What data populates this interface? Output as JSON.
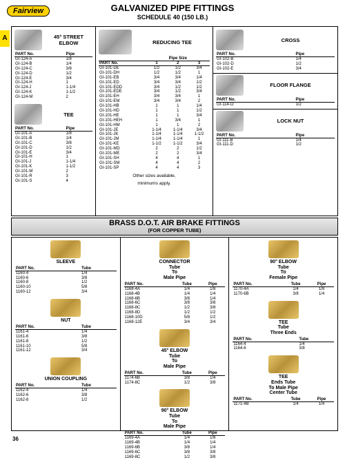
{
  "logo": "Fairview",
  "tab": "A",
  "page_number": "36",
  "header": {
    "title": "GALVANIZED PIPE FITTINGS",
    "subtitle": "SCHEDULE 40 (150 LB.)"
  },
  "banner": {
    "line1": "BRASS D.O.T. AIR BRAKE FITTINGS",
    "line2": "(FOR COPPER TUBE)"
  },
  "street_elbow": {
    "title": "45° STREET ELBOW",
    "cols": [
      "PART No.",
      "Pipe"
    ],
    "rows": [
      [
        "GI-124-A",
        "1/8"
      ],
      [
        "GI-124-B",
        "1/4"
      ],
      [
        "GI-124-C",
        "3/8"
      ],
      [
        "GI-124-D",
        "1/2"
      ],
      [
        "GI-124-E",
        "3/4"
      ],
      [
        "GI-124-H",
        "1"
      ],
      [
        "GI-124-J",
        "1-1/4"
      ],
      [
        "GI-124-K",
        "1-1/2"
      ],
      [
        "GI-124-M",
        "2"
      ]
    ]
  },
  "tee": {
    "title": "TEE",
    "cols": [
      "PART No.",
      "Pipe"
    ],
    "rows": [
      [
        "GI-101-A",
        "1/8"
      ],
      [
        "GI-101-B",
        "1/4"
      ],
      [
        "GI-101-C",
        "3/8"
      ],
      [
        "GI-101-D",
        "1/2"
      ],
      [
        "GI-101-E",
        "3/4"
      ],
      [
        "GI-101-H",
        "1"
      ],
      [
        "GI-101-J",
        "1-1/4"
      ],
      [
        "GI-101-K",
        "1-1/2"
      ],
      [
        "GI-101-M",
        "2"
      ],
      [
        "GI-101-R",
        "3"
      ],
      [
        "GI-101-S",
        "4"
      ]
    ]
  },
  "reducing_tee": {
    "title": "REDUCING TEE",
    "supercol": "Pipe Size",
    "cols": [
      "PART No.",
      "1",
      "2",
      "3"
    ],
    "rows": [
      [
        "GI-101-DE",
        "1/2",
        "1/2",
        "3/4"
      ],
      [
        "GI-101-DH",
        "1/2",
        "1/2",
        "1"
      ],
      [
        "GI-101-EB",
        "3/4",
        "3/4",
        "1/4"
      ],
      [
        "GI-101-ED",
        "3/4",
        "3/4",
        "1/2"
      ],
      [
        "GI-101-EDD",
        "3/4",
        "1/2",
        "1/2"
      ],
      [
        "GI-101-EDE",
        "3/4",
        "1/2",
        "3/4"
      ],
      [
        "GI-101-EH",
        "3/4",
        "3/4",
        "1"
      ],
      [
        "GI-101-EM",
        "3/4",
        "3/4",
        "2"
      ],
      [
        "GI-101-HB",
        "1",
        "1",
        "1/4"
      ],
      [
        "GI-101-HD",
        "1",
        "1",
        "1/2"
      ],
      [
        "GI-101-HE",
        "1",
        "1",
        "3/4"
      ],
      [
        "GI-101-HEH",
        "1",
        "3/4",
        "1"
      ],
      [
        "GI-101-HM",
        "1",
        "1",
        "2"
      ],
      [
        "GI-101-JE",
        "1-1/4",
        "1-1/4",
        "3/4"
      ],
      [
        "GI-101-JK",
        "1-1/4",
        "1-1/4",
        "1-1/2"
      ],
      [
        "GI-101-JM",
        "1-1/4",
        "1-1/4",
        "1"
      ],
      [
        "GI-101-KE",
        "1-1/2",
        "1-1/2",
        "3/4"
      ],
      [
        "GI-101-MD",
        "2",
        "2",
        "1/2"
      ],
      [
        "GI-101-ME",
        "2",
        "2",
        "3/4"
      ],
      [
        "GI-101-SH",
        "4",
        "4",
        "1"
      ],
      [
        "GI-101-SM",
        "4",
        "4",
        "2"
      ],
      [
        "GI-101-SP",
        "4",
        "4",
        "3"
      ]
    ],
    "note1": "Other sizes available,",
    "note2": "minimums apply."
  },
  "cross": {
    "title": "CROSS",
    "cols": [
      "PART No.",
      "Pipe"
    ],
    "rows": [
      [
        "GI-102-B",
        "1/4"
      ],
      [
        "GI-102-D",
        "1/2"
      ],
      [
        "GI-102-E",
        "3/4"
      ]
    ]
  },
  "flange": {
    "title": "FLOOR FLANGE",
    "cols": [
      "PART No.",
      "Pipe"
    ],
    "rows": [
      [
        "GI-114-O",
        "1/2"
      ]
    ]
  },
  "locknut": {
    "title": "LOCK NUT",
    "cols": [
      "PART No.",
      "Pipe"
    ],
    "rows": [
      [
        "GI-111-B",
        "1/4"
      ],
      [
        "GI-111-D",
        "1/2"
      ]
    ]
  },
  "sleeve": {
    "title": "SLEEVE",
    "cols": [
      "PART No.",
      "Tube"
    ],
    "rows": [
      [
        "1160-4",
        "1/4"
      ],
      [
        "1160-6",
        "3/8"
      ],
      [
        "1160-8",
        "1/2"
      ],
      [
        "1160-10",
        "5/8"
      ],
      [
        "1160-12",
        "3/4"
      ]
    ]
  },
  "nut": {
    "title": "NUT",
    "cols": [
      "PART No.",
      "Tube"
    ],
    "rows": [
      [
        "1161-4",
        "1/4"
      ],
      [
        "1161-6",
        "3/8"
      ],
      [
        "1161-8",
        "1/2"
      ],
      [
        "1161-10",
        "5/8"
      ],
      [
        "1161-12",
        "3/4"
      ]
    ]
  },
  "union": {
    "title": "UNION COUPLING",
    "cols": [
      "PART No.",
      "Tube"
    ],
    "rows": [
      [
        "1162-4",
        "1/4"
      ],
      [
        "1162-6",
        "3/8"
      ],
      [
        "1162-8",
        "1/2"
      ]
    ]
  },
  "connector": {
    "title": "CONNECTOR",
    "sub": "Tube\nTo\nMale Pipe",
    "cols": [
      "PART No.",
      "Tube",
      "Pipe"
    ],
    "rows": [
      [
        "1168-4A",
        "1/4",
        "1/8"
      ],
      [
        "1168-4B",
        "1/4",
        "1/4"
      ],
      [
        "1168-6B",
        "3/8",
        "1/4"
      ],
      [
        "1168-6C",
        "3/8",
        "3/8"
      ],
      [
        "1168-8C",
        "1/2",
        "3/8"
      ],
      [
        "1168-8D",
        "1/2",
        "1/2"
      ],
      [
        "1168-10D",
        "5/8",
        "1/2"
      ],
      [
        "1168-12E",
        "3/4",
        "3/4"
      ]
    ]
  },
  "elbow45": {
    "title": "45° ELBOW",
    "sub": "Tube\nTo\nMale Pipe",
    "cols": [
      "PART No.",
      "Tube",
      "Pipe"
    ],
    "rows": [
      [
        "1174-6B",
        "3/8",
        "1/4"
      ],
      [
        "1174-8C",
        "1/2",
        "3/8"
      ]
    ]
  },
  "elbow90m": {
    "title": "90° ELBOW",
    "sub": "Tube\nTo\nMale Pipe",
    "cols": [
      "PART No.",
      "Tube",
      "Pipe"
    ],
    "rows": [
      [
        "1169-4A",
        "1/4",
        "1/8"
      ],
      [
        "1169-4B",
        "1/4",
        "1/4"
      ],
      [
        "1169-6B",
        "3/8",
        "1/4"
      ],
      [
        "1169-6C",
        "3/8",
        "3/8"
      ],
      [
        "1169-8C",
        "1/2",
        "3/8"
      ]
    ]
  },
  "elbow90f": {
    "title": "90° ELBOW",
    "sub": "Tube\nTo\nFemale Pipe",
    "cols": [
      "PART No.",
      "Tube",
      "Pipe"
    ],
    "rows": [
      [
        "1170-4A",
        "1/4",
        "1/8"
      ],
      [
        "1170-6B",
        "3/8",
        "1/4"
      ]
    ]
  },
  "tee3": {
    "title": "TEE",
    "sub": "Tube\nThree Ends",
    "cols": [
      "PART No.",
      "Tube"
    ],
    "rows": [
      [
        "1164-4",
        "1/4"
      ],
      [
        "1164-6",
        "3/8"
      ]
    ]
  },
  "teectr": {
    "title": "TEE",
    "sub": "Ends Tube\nTo Male Pipe\nCenter Tube",
    "cols": [
      "PART No.",
      "Tube",
      "Pipe"
    ],
    "rows": [
      [
        "1171-4B",
        "1/4",
        "1/4"
      ]
    ]
  }
}
